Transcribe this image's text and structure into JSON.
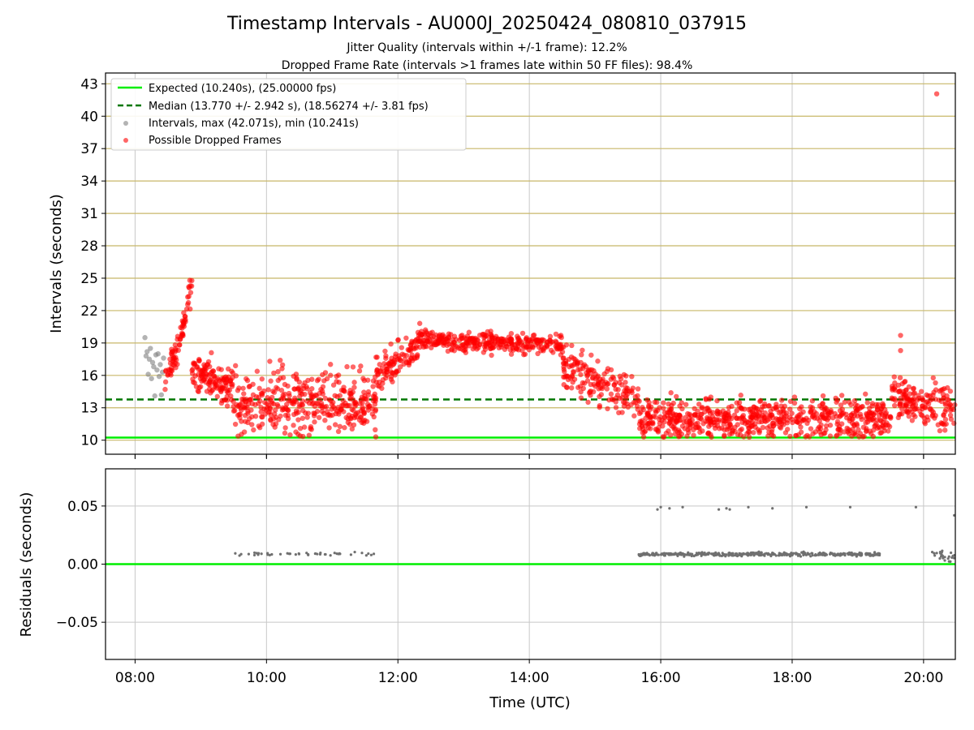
{
  "figure": {
    "title": "Timestamp Intervals - AU000J_20250424_080810_037915",
    "subtitle_1": "Jitter Quality (intervals within +/-1 frame): 12.2%",
    "subtitle_2": "Dropped Frame Rate (intervals >1 frames late within 50 FF files): 98.4%",
    "xlabel": "Time (UTC)"
  },
  "colors": {
    "expected": "#00ee00",
    "median": "#007700",
    "intervals": "#808080",
    "dropped": "#ff0000",
    "top_gridlines": "#c8b768",
    "gridlines": "#c8c8c8",
    "residual_points": "#707070"
  },
  "chart_data": [
    {
      "type": "scatter",
      "panel": "top",
      "ylabel": "Intervals (seconds)",
      "xlabel": "",
      "grid": true,
      "legend_placement": "top-left",
      "xlim": [
        "07:33",
        "20:29"
      ],
      "ylim": [
        8.7,
        44.0
      ],
      "x_ticks": [
        "08:00",
        "10:00",
        "12:00",
        "14:00",
        "16:00",
        "18:00",
        "20:00"
      ],
      "y_ticks": [
        10,
        13,
        16,
        19,
        22,
        25,
        28,
        31,
        34,
        37,
        40,
        43
      ],
      "lines": [
        {
          "name": "Expected (10.240s), (25.00000 fps)",
          "value": 10.24,
          "style": "solid"
        },
        {
          "name": "Median (13.770 +/- 2.942 s), (18.56274 +/- 3.81 fps)",
          "value": 13.77,
          "style": "dashed"
        }
      ],
      "series": [
        {
          "name": "Intervals, max (42.071s), min (10.241s)",
          "points": [
            [
              "08:09",
              19.5
            ],
            [
              "08:10",
              17.8
            ],
            [
              "08:11",
              18.2
            ],
            [
              "08:12",
              16.1
            ],
            [
              "08:13",
              17.5
            ],
            [
              "08:14",
              18.5
            ],
            [
              "08:15",
              15.7
            ],
            [
              "08:16",
              17.2
            ],
            [
              "08:17",
              16.8
            ],
            [
              "08:18",
              14.1
            ],
            [
              "08:19",
              17.9
            ],
            [
              "08:20",
              16.5
            ],
            [
              "08:21",
              18.0
            ],
            [
              "08:22",
              15.9
            ],
            [
              "08:23",
              17.0
            ],
            [
              "08:24",
              14.2
            ],
            [
              "08:25",
              16.3
            ],
            [
              "08:26",
              17.6
            ]
          ]
        },
        {
          "name": "Possible Dropped Frames",
          "segments": [
            {
              "start": "08:27",
              "end": "08:38",
              "start_value": 15.5,
              "end_value": 18.5,
              "spread": 1.4,
              "count": 35
            },
            {
              "start": "08:38",
              "end": "08:52",
              "start_value": 18.0,
              "end_value": 24.6,
              "spread": 1.6,
              "count": 40
            },
            {
              "start": "08:52",
              "end": "09:30",
              "start_value": 16.5,
              "end_value": 14.5,
              "spread": 1.8,
              "count": 130
            },
            {
              "start": "09:30",
              "end": "11:40",
              "start_value": 13.5,
              "end_value": 13.5,
              "spread": 2.8,
              "count": 380
            },
            {
              "start": "11:40",
              "end": "12:20",
              "start_value": 16.0,
              "end_value": 19.0,
              "spread": 1.6,
              "count": 110
            },
            {
              "start": "12:20",
              "end": "14:30",
              "start_value": 19.3,
              "end_value": 18.8,
              "spread": 0.9,
              "count": 320
            },
            {
              "start": "14:30",
              "end": "15:40",
              "start_value": 17.0,
              "end_value": 13.5,
              "spread": 2.0,
              "count": 170
            },
            {
              "start": "15:40",
              "end": "19:30",
              "start_value": 12.0,
              "end_value": 12.0,
              "spread": 1.8,
              "count": 640
            },
            {
              "start": "19:30",
              "end": "20:29",
              "start_value": 14.0,
              "end_value": 13.0,
              "spread": 2.0,
              "count": 160
            }
          ],
          "outliers": [
            [
              "20:12",
              42.07
            ],
            [
              "19:39",
              19.7
            ],
            [
              "19:39",
              18.3
            ],
            [
              "08:50",
              24.8
            ],
            [
              "08:49",
              24.2
            ]
          ]
        }
      ]
    },
    {
      "type": "scatter",
      "panel": "bottom",
      "ylabel": "Residuals (seconds)",
      "xlabel": "Time (UTC)",
      "grid": true,
      "xlim": [
        "07:33",
        "20:29"
      ],
      "ylim": [
        -0.082,
        0.082
      ],
      "x_ticks": [
        "08:00",
        "10:00",
        "12:00",
        "14:00",
        "16:00",
        "18:00",
        "20:00"
      ],
      "y_ticks": [
        {
          "value": 0.05,
          "label": "0.05"
        },
        {
          "value": 0.0,
          "label": "0.00"
        },
        {
          "value": -0.05,
          "label": "−0.05"
        }
      ],
      "reference_line": 0.0,
      "series": [
        {
          "name": "Residuals",
          "segments": [
            {
              "start": "09:30",
              "end": "11:40",
              "center": 0.0085,
              "spread": 0.0015,
              "count": 45
            },
            {
              "start": "15:40",
              "end": "19:20",
              "center": 0.0085,
              "spread": 0.0015,
              "count": 420
            },
            {
              "start": "20:05",
              "end": "20:29",
              "center": 0.007,
              "spread": 0.005,
              "count": 25
            }
          ],
          "high_points": [
            [
              "15:57",
              0.047
            ],
            [
              "16:00",
              0.049
            ],
            [
              "16:08",
              0.048
            ],
            [
              "16:20",
              0.049
            ],
            [
              "16:53",
              0.047
            ],
            [
              "17:00",
              0.048
            ],
            [
              "17:03",
              0.047
            ],
            [
              "17:20",
              0.049
            ],
            [
              "17:42",
              0.048
            ],
            [
              "18:13",
              0.049
            ],
            [
              "18:53",
              0.049
            ],
            [
              "19:53",
              0.049
            ],
            [
              "20:28",
              0.042
            ]
          ]
        }
      ]
    }
  ]
}
